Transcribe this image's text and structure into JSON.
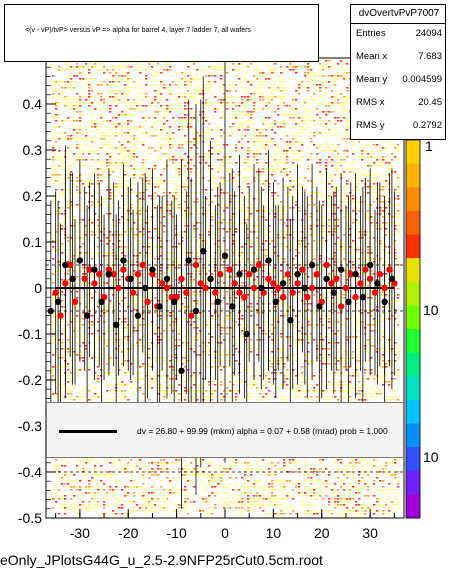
{
  "title": "<(v - vP)/tvP> versus   vP => alpha for barrel 4, layer 7 ladder 7, all wafers",
  "stats": {
    "name": "dvOvertvPvP7007",
    "rows": [
      {
        "label": "Entries",
        "value": "24094"
      },
      {
        "label": "Mean x",
        "value": "7.683"
      },
      {
        "label": "Mean y",
        "value": "0.004599"
      },
      {
        "label": "RMS x",
        "value": "20.45"
      },
      {
        "label": "RMS y",
        "value": "0.2792"
      }
    ]
  },
  "fit_text": "dv =    26.80 +  99.99 (mkm) alpha =    0.07 +  0.58 (mrad) prob = 1.000",
  "footer": "eOnly_JPlotsG44G_u_2.5-2.9NFP25rCut0.5cm.root",
  "colors": {
    "heat_low": "#ffff66",
    "heat_mid": "#ff9933",
    "heat_high": "#ff3333",
    "profile_red": "#ff0000",
    "profile_black": "#000000"
  },
  "chart_data": {
    "type": "scatter",
    "xlim": [
      -37,
      37
    ],
    "ylim": [
      -0.5,
      0.5
    ],
    "xticks": [
      "-30",
      "-20",
      "-10",
      "0",
      "10",
      "20",
      "30"
    ],
    "yticks": [
      "-0.5",
      "-0.4",
      "-0.3",
      "-0.2",
      "-0.1",
      "0",
      "0.1",
      "0.2",
      "0.3",
      "0.4"
    ],
    "colorbar_labels": [
      "1",
      "10",
      "10"
    ],
    "dashed_y": [
      0.05,
      -0.05,
      -0.4
    ],
    "fit_line": {
      "x": [
        -35,
        35
      ],
      "y": [
        0.0,
        0.0
      ]
    },
    "profile_red": {
      "x": [
        -35,
        -34,
        -33,
        -32,
        -31,
        -29,
        -28,
        -27,
        -26,
        -25,
        -24,
        -23,
        -22,
        -21,
        -20,
        -19,
        -18,
        -17,
        -16,
        -15,
        -14,
        -13,
        -12,
        -11,
        -10,
        -9,
        -8,
        -7,
        -6,
        -5,
        -4,
        -3,
        -2,
        -1,
        1,
        2,
        3,
        4,
        5,
        6,
        7,
        8,
        9,
        10,
        11,
        12,
        13,
        14,
        15,
        16,
        17,
        18,
        19,
        20,
        21,
        22,
        23,
        24,
        25,
        26,
        27,
        28,
        29,
        30,
        31,
        32,
        33,
        34,
        35
      ],
      "y": [
        -0.01,
        -0.06,
        0.01,
        0.05,
        -0.03,
        0.02,
        0.04,
        0.01,
        0.03,
        -0.02,
        0.04,
        0.03,
        0.0,
        0.04,
        0.02,
        -0.01,
        0.03,
        0.05,
        -0.03,
        0.03,
        -0.04,
        0.01,
        0.0,
        -0.02,
        -0.02,
        0.02,
        -0.01,
        -0.06,
        0.05,
        0.01,
        0.0,
        0.02,
        -0.01,
        0.03,
        0.04,
        0.01,
        -0.01,
        -0.02,
        0.03,
        0.0,
        0.05,
        -0.01,
        0.02,
        0.01,
        0.0,
        -0.02,
        0.03,
        -0.01,
        0.01,
        0.04,
        -0.02,
        0.0,
        0.03,
        -0.03,
        0.05,
        0.01,
        0.02,
        -0.04,
        0.0,
        0.03,
        -0.02,
        0.01,
        0.04,
        0.02,
        -0.01,
        0.03,
        0.0,
        0.04,
        0.01
      ],
      "err": [
        0.22,
        0.2,
        0.25,
        0.2,
        0.18,
        0.2,
        0.19,
        0.21,
        0.2,
        0.18,
        0.22,
        0.2,
        0.19,
        0.21,
        0.2,
        0.18,
        0.2,
        0.19,
        0.21,
        0.2,
        0.22,
        0.19,
        0.2,
        0.21,
        0.18,
        0.26,
        0.22,
        0.3,
        0.35,
        0.4,
        0.2,
        0.22,
        0.19,
        0.2,
        0.21,
        0.2,
        0.18,
        0.22,
        0.19,
        0.2,
        0.21,
        0.19,
        0.2,
        0.22,
        0.18,
        0.2,
        0.19,
        0.21,
        0.2,
        0.18,
        0.22,
        0.2,
        0.19,
        0.21,
        0.2,
        0.19,
        0.2,
        0.21,
        0.18,
        0.2,
        0.22,
        0.19,
        0.2,
        0.21,
        0.18,
        0.2,
        0.19,
        0.21,
        0.2
      ]
    },
    "profile_black": {
      "x": [
        -36,
        -34.5,
        -33,
        -31.5,
        -30,
        -28.5,
        -27,
        -25.5,
        -24,
        -22.5,
        -21,
        -19.5,
        -18,
        -16.5,
        -15,
        -13.5,
        -12,
        -10.5,
        -9,
        -7.5,
        -6,
        -4.5,
        -3,
        -1.5,
        0,
        1.5,
        3,
        4.5,
        6,
        7.5,
        9,
        10.5,
        12,
        13.5,
        15,
        16.5,
        18,
        19.5,
        21,
        22.5,
        24,
        25.5,
        27,
        28.5,
        30,
        31.5,
        33,
        34.5
      ],
      "y": [
        -0.05,
        -0.03,
        0.05,
        0.02,
        0.06,
        -0.06,
        0.04,
        -0.03,
        0.03,
        -0.08,
        0.06,
        0.02,
        -0.06,
        0.0,
        0.04,
        -0.04,
        0.02,
        -0.03,
        -0.18,
        0.06,
        -0.05,
        0.08,
        0.02,
        -0.03,
        0.07,
        -0.04,
        0.03,
        -0.1,
        0.04,
        0.0,
        0.06,
        -0.03,
        0.01,
        -0.07,
        0.03,
        0.0,
        0.05,
        -0.04,
        0.02,
        -0.01,
        0.04,
        -0.03,
        0.03,
        -0.02,
        0.05,
        0.01,
        -0.03,
        0.02
      ],
      "err": [
        0.24,
        0.22,
        0.26,
        0.23,
        0.22,
        0.24,
        0.21,
        0.23,
        0.22,
        0.24,
        0.21,
        0.22,
        0.23,
        0.25,
        0.22,
        0.24,
        0.26,
        0.23,
        0.3,
        0.35,
        0.4,
        0.38,
        0.3,
        0.25,
        0.45,
        0.3,
        0.26,
        0.24,
        0.23,
        0.22,
        0.24,
        0.21,
        0.23,
        0.22,
        0.24,
        0.21,
        0.22,
        0.23,
        0.24,
        0.22,
        0.21,
        0.23,
        0.22,
        0.24,
        0.21,
        0.22,
        0.23,
        0.24
      ]
    }
  }
}
